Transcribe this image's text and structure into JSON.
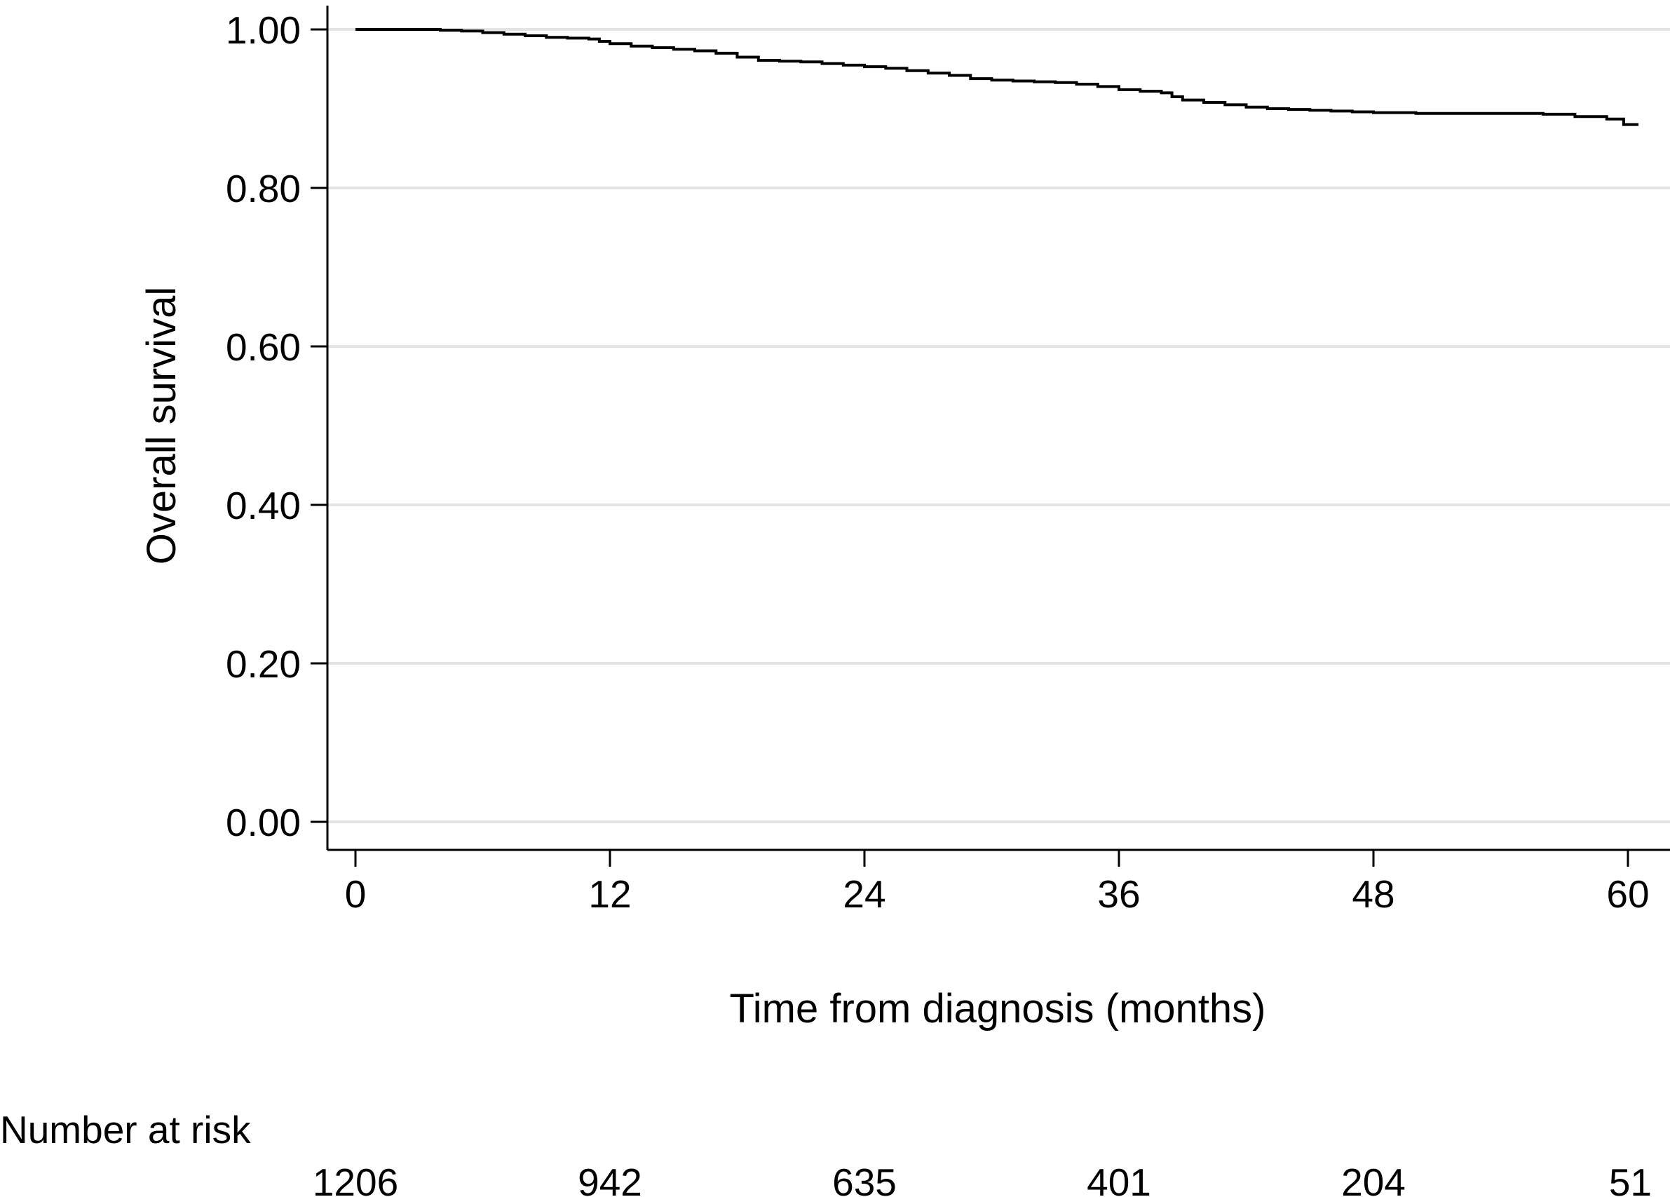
{
  "chart_data": {
    "type": "line",
    "subtype": "kaplan-meier step",
    "title": "",
    "xlabel": "Time from diagnosis (months)",
    "ylabel": "Overall survival",
    "xlim": [
      0,
      60
    ],
    "ylim": [
      0,
      1
    ],
    "x_ticks": [
      0,
      12,
      24,
      36,
      48,
      60
    ],
    "x_tick_labels": [
      "0",
      "12",
      "24",
      "36",
      "48",
      "60"
    ],
    "y_ticks": [
      0,
      0.2,
      0.4,
      0.6,
      0.8,
      1.0
    ],
    "y_tick_labels": [
      "0.00",
      "0.20",
      "0.40",
      "0.60",
      "0.80",
      "1.00"
    ],
    "grid": "horizontal",
    "legend": "none",
    "series": [
      {
        "color": "#000000",
        "x": [
          0,
          4,
          5,
          6,
          7,
          8,
          9,
          10,
          11,
          11.5,
          12,
          13,
          14,
          15,
          16,
          17,
          18,
          19,
          20,
          21,
          22,
          23,
          24,
          25,
          26,
          27,
          28,
          29,
          30,
          31,
          32,
          33,
          34,
          35,
          36,
          37,
          38,
          38.5,
          39,
          40,
          41,
          42,
          43,
          44,
          45,
          46,
          47,
          48,
          50,
          52,
          54,
          56,
          57.5,
          59,
          59.8,
          60.5
        ],
        "y": [
          1.0,
          0.999,
          0.998,
          0.996,
          0.994,
          0.992,
          0.99,
          0.989,
          0.988,
          0.985,
          0.982,
          0.979,
          0.977,
          0.975,
          0.973,
          0.97,
          0.965,
          0.961,
          0.96,
          0.959,
          0.957,
          0.955,
          0.953,
          0.951,
          0.948,
          0.945,
          0.942,
          0.938,
          0.936,
          0.935,
          0.934,
          0.933,
          0.931,
          0.928,
          0.924,
          0.922,
          0.92,
          0.915,
          0.911,
          0.908,
          0.905,
          0.902,
          0.9,
          0.899,
          0.898,
          0.897,
          0.896,
          0.895,
          0.894,
          0.894,
          0.894,
          0.893,
          0.89,
          0.887,
          0.88,
          0.88
        ]
      }
    ],
    "risk_table": {
      "label": "Number at risk",
      "times": [
        0,
        12,
        24,
        36,
        48,
        60
      ],
      "values": [
        "1206",
        "942",
        "635",
        "401",
        "204",
        "51"
      ]
    }
  },
  "colors": {
    "line": "#000000",
    "grid": "#e4e4e4",
    "axis": "#000000",
    "background": "#ffffff"
  }
}
